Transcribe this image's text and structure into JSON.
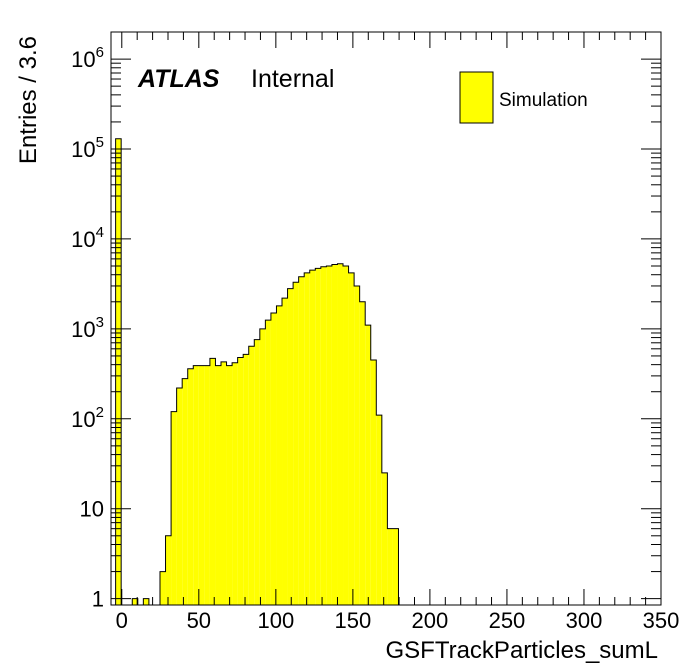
{
  "chart_data": {
    "type": "histogram",
    "xlabel": "GSFTrackParticles_sumL",
    "ylabel": "Entries / 3.6",
    "bin_width": 3.6,
    "x_start": -4,
    "xlim": [
      -7,
      350
    ],
    "ylim": [
      0.85,
      2000000
    ],
    "log_y": true,
    "x_ticks": [
      0,
      50,
      100,
      150,
      200,
      250,
      300,
      350
    ],
    "x_tick_labels": [
      "0",
      "50",
      "100",
      "150",
      "200",
      "250",
      "300",
      "350"
    ],
    "y_tick_labels": [
      {
        "value": 1,
        "base": "1",
        "exp": ""
      },
      {
        "value": 10,
        "base": "10",
        "exp": ""
      },
      {
        "value": 100,
        "base": "10",
        "exp": "2"
      },
      {
        "value": 1000,
        "base": "10",
        "exp": "3"
      },
      {
        "value": 10000,
        "base": "10",
        "exp": "4"
      },
      {
        "value": 100000,
        "base": "10",
        "exp": "5"
      },
      {
        "value": 1000000,
        "base": "10",
        "exp": "6"
      }
    ],
    "values": [
      130000,
      0,
      0,
      1,
      0,
      1,
      0,
      0,
      2,
      5,
      120,
      220,
      280,
      360,
      390,
      390,
      390,
      470,
      390,
      430,
      390,
      420,
      480,
      520,
      640,
      760,
      1000,
      1250,
      1500,
      1800,
      2200,
      2800,
      3300,
      3800,
      4200,
      4500,
      4700,
      4900,
      5000,
      5200,
      5300,
      5000,
      4200,
      3000,
      2000,
      1100,
      450,
      110,
      25,
      6,
      6,
      0
    ],
    "fill_color": "#ffff00",
    "legend": {
      "entries": [
        {
          "name": "Simulation",
          "color": "#ffff00"
        }
      ],
      "position": "top-right"
    },
    "annotation": {
      "bold": "ATLAS",
      "normal": "Internal"
    }
  }
}
